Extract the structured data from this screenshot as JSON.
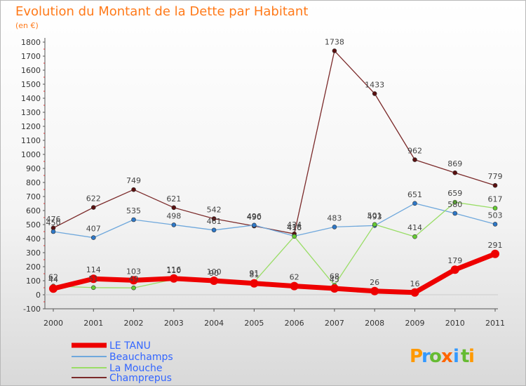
{
  "chart_data": {
    "type": "line",
    "title": "Evolution du Montant de la Dette par Habitant",
    "subtitle": "(en €)",
    "x": [
      "2000",
      "2001",
      "2002",
      "2003",
      "2004",
      "2005",
      "2006",
      "2007",
      "2008",
      "2009",
      "2010",
      "2011"
    ],
    "yticks": [
      "-100",
      "0",
      "100",
      "200",
      "300",
      "400",
      "500",
      "600",
      "700",
      "800",
      "900",
      "1000",
      "1100",
      "1200",
      "1300",
      "1400",
      "1500",
      "1600",
      "1700",
      "1800"
    ],
    "ylim": [
      -100,
      1800
    ],
    "grid": false,
    "legend_position": "bottom-left",
    "series": [
      {
        "name": "Champrepus",
        "color": "#7b2a2a",
        "marker": "#5a1010",
        "width": 1.3,
        "values": [
          476,
          622,
          749,
          621,
          542,
          490,
          434,
          1738,
          1433,
          962,
          869,
          779
        ],
        "labels": [
          "476",
          "622",
          "749",
          "621",
          "542",
          "490",
          "434",
          "1738",
          "1433",
          "962",
          "869",
          "779"
        ]
      },
      {
        "name": "Beauchamps",
        "color": "#6fa8dc",
        "marker": "#2e78c8",
        "width": 1.3,
        "values": [
          450,
          407,
          535,
          498,
          461,
          496,
          418,
          483,
          493,
          651,
          580,
          503
        ],
        "labels": [
          "450",
          "407",
          "535",
          "498",
          "461",
          "496",
          "418",
          "483",
          "493",
          "651",
          "580",
          "503"
        ]
      },
      {
        "name": "La Mouche",
        "color": "#99dd66",
        "marker": "#66cc33",
        "width": 1.3,
        "values": [
          62,
          51,
          49,
          110,
          90,
          91,
          416,
          68,
          501,
          414,
          659,
          617
        ],
        "labels": [
          "62",
          "51",
          "49",
          "110",
          "90",
          "91",
          "416",
          "68",
          "501",
          "414",
          "659",
          "617"
        ]
      },
      {
        "name": "LE TANU",
        "color": "#ee0000",
        "marker": "#ee0000",
        "width": 7,
        "values": [
          44,
          114,
          103,
          116,
          100,
          81,
          62,
          45,
          26,
          16,
          179,
          291
        ],
        "labels": [
          "44",
          "114",
          "103",
          "116",
          "100",
          "81",
          "62",
          "45",
          "26",
          "16",
          "179",
          "291"
        ]
      }
    ],
    "legend": [
      "LE TANU",
      "Beauchamps",
      "La Mouche",
      "Champrepus"
    ]
  },
  "logo": {
    "letters": [
      "P",
      "r",
      "o",
      "x",
      "i",
      "t",
      "i"
    ],
    "colors": [
      "#ff9900",
      "#3399ff",
      "#66bb33",
      "#ff6600",
      "#3399ff",
      "#66bb33",
      "#ff9900"
    ]
  }
}
